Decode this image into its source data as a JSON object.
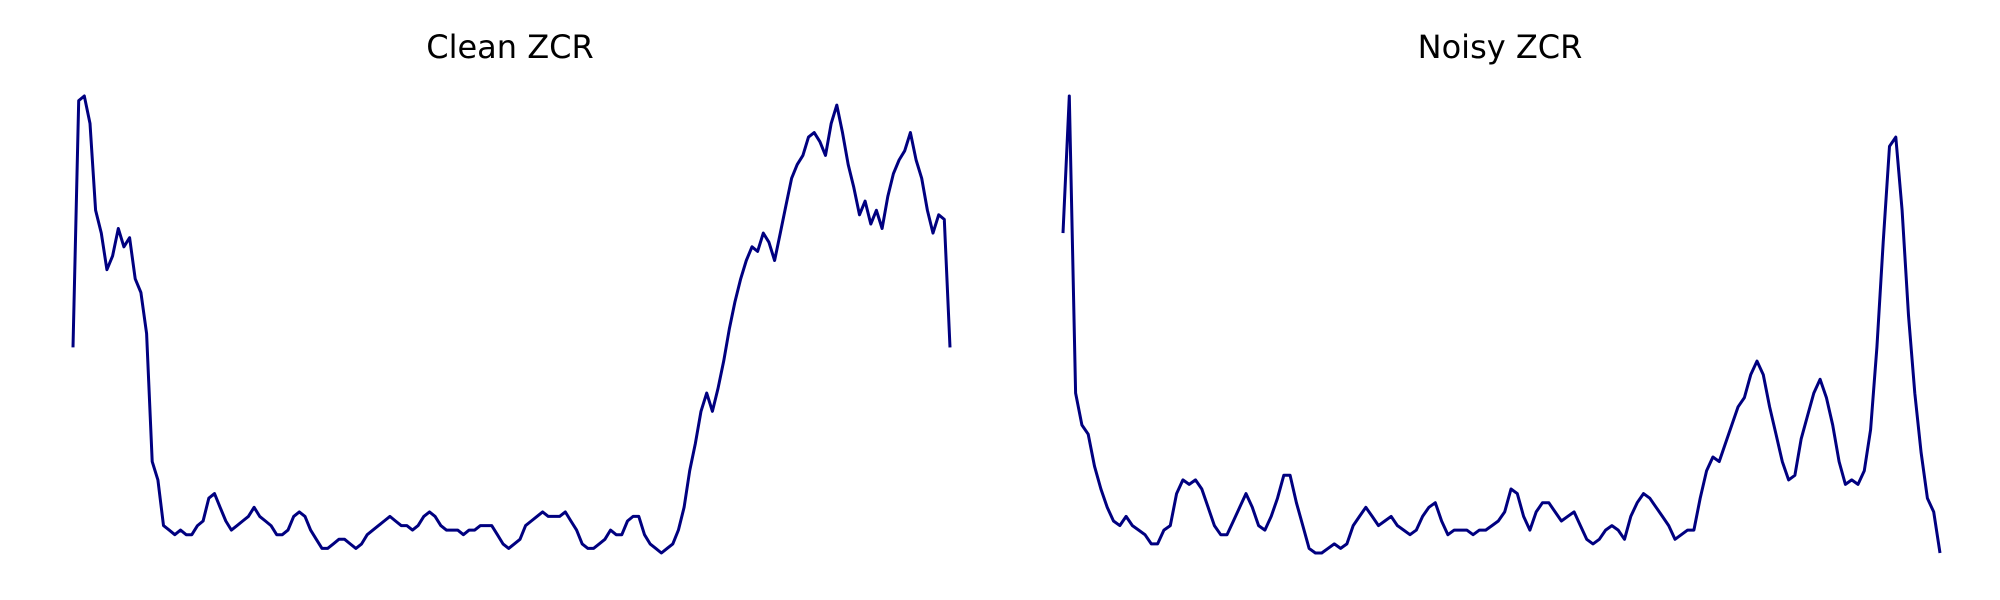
{
  "chart_data": [
    {
      "type": "line",
      "title": "Clean ZCR",
      "xlabel": "",
      "ylabel": "",
      "grid": false,
      "axes_visible": false,
      "color": "#000080",
      "ylim": [
        0.0,
        1.0
      ],
      "values": [
        0.45,
        0.99,
        1.0,
        0.94,
        0.75,
        0.7,
        0.62,
        0.65,
        0.71,
        0.67,
        0.69,
        0.6,
        0.57,
        0.48,
        0.2,
        0.16,
        0.06,
        0.05,
        0.04,
        0.05,
        0.04,
        0.04,
        0.06,
        0.07,
        0.12,
        0.13,
        0.1,
        0.07,
        0.05,
        0.06,
        0.07,
        0.08,
        0.1,
        0.08,
        0.07,
        0.06,
        0.04,
        0.04,
        0.05,
        0.08,
        0.09,
        0.08,
        0.05,
        0.03,
        0.01,
        0.01,
        0.02,
        0.03,
        0.03,
        0.02,
        0.01,
        0.02,
        0.04,
        0.05,
        0.06,
        0.07,
        0.08,
        0.07,
        0.06,
        0.06,
        0.05,
        0.06,
        0.08,
        0.09,
        0.08,
        0.06,
        0.05,
        0.05,
        0.05,
        0.04,
        0.05,
        0.05,
        0.06,
        0.06,
        0.06,
        0.04,
        0.02,
        0.01,
        0.02,
        0.03,
        0.06,
        0.07,
        0.08,
        0.09,
        0.08,
        0.08,
        0.08,
        0.09,
        0.07,
        0.05,
        0.02,
        0.01,
        0.01,
        0.02,
        0.03,
        0.05,
        0.04,
        0.04,
        0.07,
        0.08,
        0.08,
        0.04,
        0.02,
        0.01,
        0.0,
        0.01,
        0.02,
        0.05,
        0.1,
        0.18,
        0.24,
        0.31,
        0.35,
        0.31,
        0.36,
        0.42,
        0.49,
        0.55,
        0.6,
        0.64,
        0.67,
        0.66,
        0.7,
        0.68,
        0.64,
        0.7,
        0.76,
        0.82,
        0.85,
        0.87,
        0.91,
        0.92,
        0.9,
        0.87,
        0.94,
        0.98,
        0.92,
        0.85,
        0.8,
        0.74,
        0.77,
        0.72,
        0.75,
        0.71,
        0.78,
        0.83,
        0.86,
        0.88,
        0.92,
        0.86,
        0.82,
        0.75,
        0.7,
        0.74,
        0.73,
        0.45
      ],
      "x_norm_range": [
        0.0,
        1.0
      ]
    },
    {
      "type": "line",
      "title": "Noisy ZCR",
      "xlabel": "",
      "ylabel": "",
      "grid": false,
      "axes_visible": false,
      "color": "#000080",
      "ylim": [
        0.0,
        1.0
      ],
      "values": [
        0.7,
        1.0,
        0.35,
        0.28,
        0.26,
        0.19,
        0.14,
        0.1,
        0.07,
        0.06,
        0.08,
        0.06,
        0.05,
        0.04,
        0.02,
        0.02,
        0.05,
        0.06,
        0.13,
        0.16,
        0.15,
        0.16,
        0.14,
        0.1,
        0.06,
        0.04,
        0.04,
        0.07,
        0.1,
        0.13,
        0.1,
        0.06,
        0.05,
        0.08,
        0.12,
        0.17,
        0.17,
        0.11,
        0.06,
        0.01,
        0.0,
        0.0,
        0.01,
        0.02,
        0.01,
        0.02,
        0.06,
        0.08,
        0.1,
        0.08,
        0.06,
        0.07,
        0.08,
        0.06,
        0.05,
        0.04,
        0.05,
        0.08,
        0.1,
        0.11,
        0.07,
        0.04,
        0.05,
        0.05,
        0.05,
        0.04,
        0.05,
        0.05,
        0.06,
        0.07,
        0.09,
        0.14,
        0.13,
        0.08,
        0.05,
        0.09,
        0.11,
        0.11,
        0.09,
        0.07,
        0.08,
        0.09,
        0.06,
        0.03,
        0.02,
        0.03,
        0.05,
        0.06,
        0.05,
        0.03,
        0.08,
        0.11,
        0.13,
        0.12,
        0.1,
        0.08,
        0.06,
        0.03,
        0.04,
        0.05,
        0.05,
        0.12,
        0.18,
        0.21,
        0.2,
        0.24,
        0.28,
        0.32,
        0.34,
        0.39,
        0.42,
        0.39,
        0.32,
        0.26,
        0.2,
        0.16,
        0.17,
        0.25,
        0.3,
        0.35,
        0.38,
        0.34,
        0.28,
        0.2,
        0.15,
        0.16,
        0.15,
        0.18,
        0.27,
        0.45,
        0.68,
        0.89,
        0.91,
        0.75,
        0.52,
        0.35,
        0.22,
        0.12,
        0.09,
        0.0
      ],
      "x_norm_range": [
        0.0,
        1.0
      ]
    }
  ]
}
